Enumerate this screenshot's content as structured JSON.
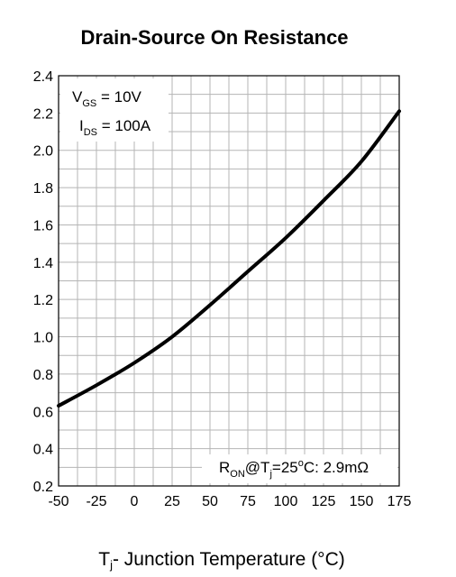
{
  "chart_data": {
    "type": "line",
    "title": "Drain-Source On Resistance",
    "xlabel": {
      "main": "T",
      "sub": "j",
      "rest": "- Junction Temperature (°C)"
    },
    "ylabel": "",
    "xlim": [
      -50,
      175
    ],
    "ylim": [
      0.2,
      2.4
    ],
    "x_ticks": [
      "-50",
      "-25",
      "0",
      "25",
      "50",
      "75",
      "100",
      "125",
      "150",
      "175"
    ],
    "y_ticks": [
      "0.2",
      "0.4",
      "0.6",
      "0.8",
      "1.0",
      "1.2",
      "1.4",
      "1.6",
      "1.8",
      "2.0",
      "2.2",
      "2.4"
    ],
    "grid": true,
    "series": [
      {
        "x": [
          -50,
          -25,
          0,
          25,
          50,
          75,
          100,
          125,
          150,
          175
        ],
        "y": [
          0.63,
          0.74,
          0.86,
          1.0,
          1.17,
          1.35,
          1.53,
          1.73,
          1.94,
          2.21
        ]
      }
    ],
    "annotations": {
      "vgs": {
        "main": "V",
        "sub": "GS",
        "rest": " = 10V"
      },
      "ids": {
        "main": "I",
        "sub": "DS",
        "rest": " = 100A"
      },
      "ron": {
        "r": "R",
        "r_sub": "ON",
        "at": "@T",
        "t_sub": "j",
        "eq": "=25",
        "deg": "o",
        "rest": "C: 2.9mΩ"
      }
    }
  }
}
